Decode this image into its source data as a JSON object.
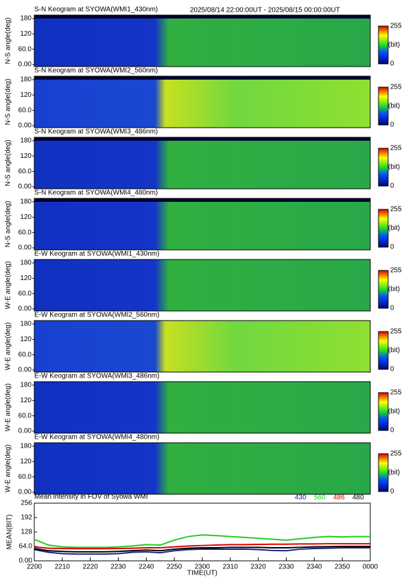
{
  "header": "2025/08/14 22:00:00UT - 2025/08/15 00:00:00UT",
  "chart_data": [
    {
      "type": "heatmap",
      "title": "S-N Keogram at SYOWA(WMI1_430nm)",
      "ylabel": "N-S angle(deg)",
      "ylim": [
        0,
        180
      ],
      "yticks": [
        {
          "value": 0,
          "label": "0.00"
        },
        {
          "value": 60,
          "label": "60.0"
        },
        120,
        180
      ],
      "colorbar": {
        "ticks": [
          0,
          255
        ],
        "label": "(bit)"
      }
    },
    {
      "type": "heatmap",
      "title": "S-N Keogram at SYOWA(WMI2_560nm)",
      "ylabel": "N-S angle(deg)",
      "ylim": [
        0,
        180
      ],
      "yticks": [
        {
          "value": 0,
          "label": "0.00"
        },
        {
          "value": 60,
          "label": "60.0"
        },
        120,
        180
      ],
      "colorbar": {
        "ticks": [
          0,
          255
        ],
        "label": "(bit)"
      }
    },
    {
      "type": "heatmap",
      "title": "S-N Keogram at SYOWA(WMI3_486nm)",
      "ylabel": "N-S angle(deg)",
      "ylim": [
        0,
        180
      ],
      "yticks": [
        {
          "value": 0,
          "label": "0.00"
        },
        {
          "value": 60,
          "label": "60.0"
        },
        120,
        180
      ],
      "colorbar": {
        "ticks": [
          0,
          255
        ],
        "label": "(bit)"
      }
    },
    {
      "type": "heatmap",
      "title": "S-N Keogram at SYOWA(WMI4_480nm)",
      "ylabel": "N-S angle(deg)",
      "ylim": [
        0,
        180
      ],
      "yticks": [
        {
          "value": 0,
          "label": "0.00"
        },
        {
          "value": 60,
          "label": "60.0"
        },
        120,
        180
      ],
      "colorbar": {
        "ticks": [
          0,
          255
        ],
        "label": "(bit)"
      }
    },
    {
      "type": "heatmap",
      "title": "E-W Keogram at SYOWA(WMI1_430nm)",
      "ylabel": "W-E angle(deg)",
      "ylim": [
        0,
        180
      ],
      "yticks": [
        {
          "value": 0,
          "label": "0.00"
        },
        {
          "value": 60,
          "label": "60.0"
        },
        120,
        180
      ],
      "colorbar": {
        "ticks": [
          0,
          255
        ],
        "label": "(bit)"
      }
    },
    {
      "type": "heatmap",
      "title": "E-W Keogram at SYOWA(WMI2_560nm)",
      "ylabel": "W-E angle(deg)",
      "ylim": [
        0,
        180
      ],
      "yticks": [
        {
          "value": 0,
          "label": "0.00"
        },
        {
          "value": 60,
          "label": "60.0"
        },
        120,
        180
      ],
      "colorbar": {
        "ticks": [
          0,
          255
        ],
        "label": "(bit)"
      }
    },
    {
      "type": "heatmap",
      "title": "E-W Keogram at SYOWA(WMI3_486nm)",
      "ylabel": "W-E angle(deg)",
      "ylim": [
        0,
        180
      ],
      "yticks": [
        {
          "value": 0,
          "label": "0.00"
        },
        {
          "value": 60,
          "label": "60.0"
        },
        120,
        180
      ],
      "colorbar": {
        "ticks": [
          0,
          255
        ],
        "label": "(bit)"
      }
    },
    {
      "type": "heatmap",
      "title": "E-W Keogram at SYOWA(WMI4_480nm)",
      "ylabel": "W-E angle(deg)",
      "ylim": [
        0,
        180
      ],
      "yticks": [
        {
          "value": 0,
          "label": "0.00"
        },
        {
          "value": 60,
          "label": "60.0"
        },
        120,
        180
      ],
      "colorbar": {
        "ticks": [
          0,
          255
        ],
        "label": "(bit)"
      }
    },
    {
      "type": "line",
      "title": "Mean intensity in FOV of Syowa WMI",
      "xlabel": "TIME(UT)",
      "ylabel": "MEAN(BIT)",
      "x": [
        0,
        5,
        10,
        15,
        20,
        25,
        30,
        35,
        40,
        45,
        50,
        55,
        60,
        65,
        70,
        75,
        80,
        85,
        90,
        95,
        100,
        105,
        110,
        115,
        120
      ],
      "xlim": [
        0,
        120
      ],
      "xticks": [
        {
          "value": 0,
          "label": "2200"
        },
        {
          "value": 10,
          "label": "2210"
        },
        {
          "value": 20,
          "label": "2220"
        },
        {
          "value": 30,
          "label": "2230"
        },
        {
          "value": 40,
          "label": "2240"
        },
        {
          "value": 50,
          "label": "2250"
        },
        {
          "value": 60,
          "label": "2300"
        },
        {
          "value": 70,
          "label": "2310"
        },
        {
          "value": 80,
          "label": "2320"
        },
        {
          "value": 90,
          "label": "2330"
        },
        {
          "value": 100,
          "label": "2340"
        },
        {
          "value": 110,
          "label": "2350"
        },
        {
          "value": 120,
          "label": "0000"
        }
      ],
      "ylim": [
        0,
        256
      ],
      "yticks": [
        {
          "value": 0,
          "label": "0.00"
        },
        {
          "value": 64,
          "label": "64.0"
        },
        128,
        192,
        256
      ],
      "series": [
        {
          "name": "430",
          "color": "#1a237e",
          "values": [
            50,
            38,
            32,
            30,
            30,
            30,
            32,
            38,
            40,
            36,
            45,
            50,
            52,
            52,
            52,
            52,
            50,
            46,
            45,
            52,
            55,
            56,
            58,
            58,
            58
          ]
        },
        {
          "name": "560",
          "color": "#22cc22",
          "values": [
            95,
            70,
            62,
            60,
            60,
            60,
            62,
            66,
            72,
            70,
            92,
            108,
            115,
            112,
            108,
            104,
            100,
            96,
            92,
            98,
            104,
            108,
            106,
            108,
            108
          ]
        },
        {
          "name": "486",
          "color": "#dd0000",
          "values": [
            62,
            56,
            55,
            54,
            54,
            54,
            55,
            56,
            58,
            58,
            62,
            66,
            68,
            70,
            72,
            72,
            73,
            74,
            74,
            75,
            75,
            76,
            76,
            76,
            76
          ]
        },
        {
          "name": "480",
          "color": "#000000",
          "values": [
            55,
            45,
            42,
            40,
            40,
            40,
            42,
            45,
            48,
            45,
            52,
            56,
            58,
            58,
            60,
            60,
            60,
            58,
            58,
            60,
            62,
            63,
            64,
            64,
            64
          ]
        }
      ]
    }
  ]
}
